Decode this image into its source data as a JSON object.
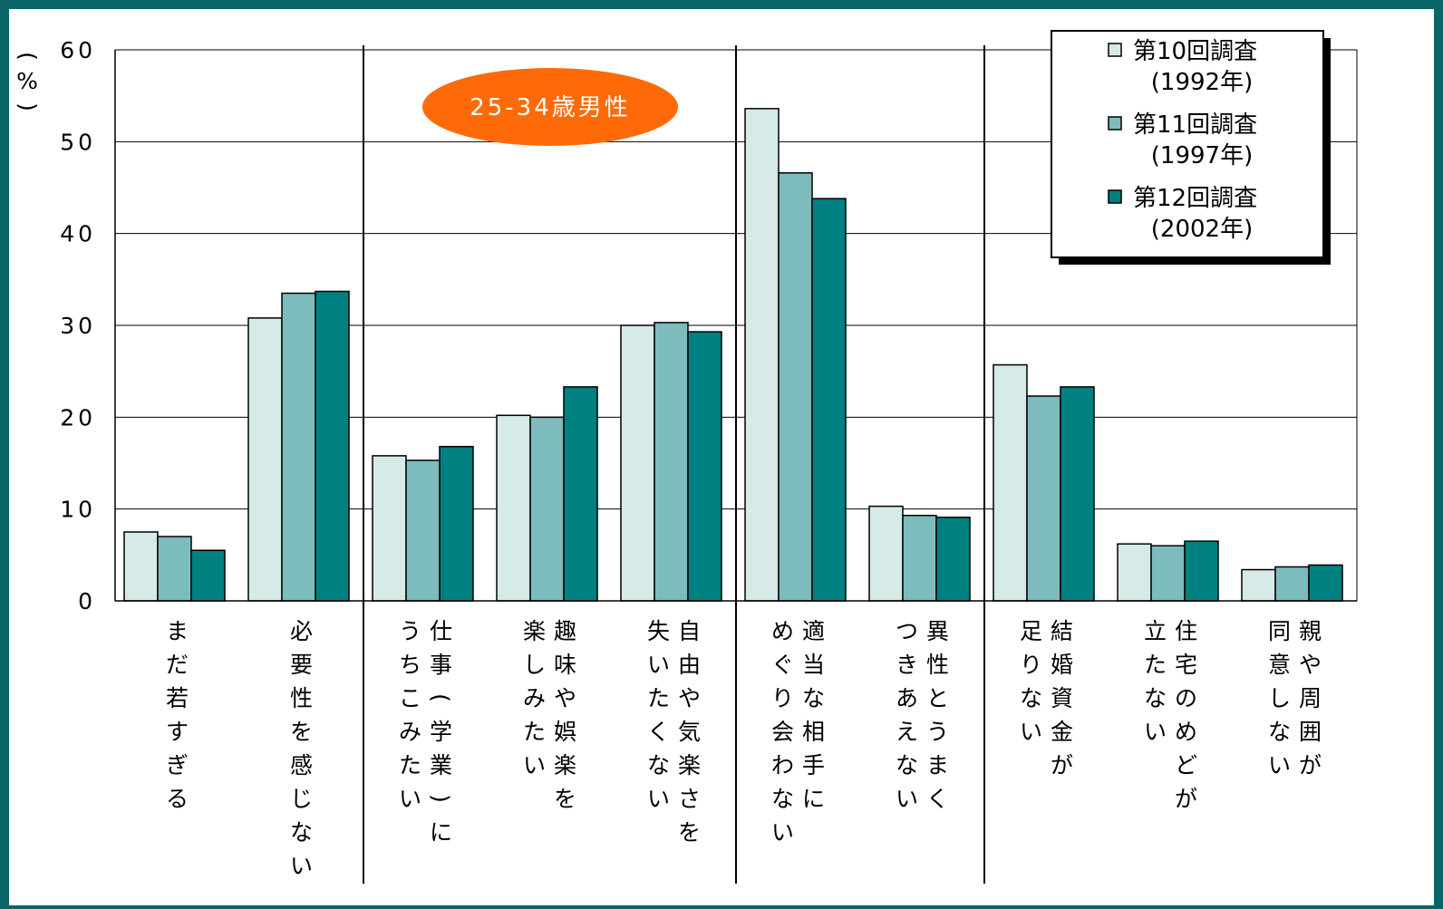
{
  "colors": {
    "background": "#0a6468",
    "panel": "#ffffff",
    "badge": "#ff6a08",
    "series": [
      "#d6eae8",
      "#7dbcbc",
      "#008080"
    ]
  },
  "badge_label": "25-34歳男性",
  "chart_data": {
    "type": "bar",
    "ylabel": "(%)",
    "ylim": [
      0,
      60
    ],
    "yticks": [
      "0",
      "10",
      "20",
      "30",
      "40",
      "50",
      "60"
    ],
    "grid": true,
    "legend_position": "top-right",
    "categories": [
      [
        "まだ若すぎる"
      ],
      [
        "必要性を感じない"
      ],
      [
        "仕事(学業)に",
        "うちこみたい"
      ],
      [
        "趣味や娯楽を",
        "楽しみたい"
      ],
      [
        "自由や気楽さを",
        "失いたくない"
      ],
      [
        "適当な相手に",
        "めぐり会わない"
      ],
      [
        "異性とうまく",
        "つきあえない"
      ],
      [
        "結婚資金が",
        "足りない"
      ],
      [
        "住宅のめどが",
        "立たない"
      ],
      [
        "親や周囲が",
        "同意しない"
      ]
    ],
    "group_separators_after": [
      2,
      5,
      7
    ],
    "series": [
      {
        "name": "第10回調査",
        "sub": "(1992年)",
        "values": [
          7.5,
          30.8,
          15.8,
          20.2,
          30.0,
          53.6,
          10.3,
          25.7,
          6.2,
          3.4
        ]
      },
      {
        "name": "第11回調査",
        "sub": "(1997年)",
        "values": [
          7.0,
          33.5,
          15.3,
          20.0,
          30.3,
          46.6,
          9.3,
          22.3,
          6.0,
          3.7
        ]
      },
      {
        "name": "第12回調査",
        "sub": "(2002年)",
        "values": [
          5.5,
          33.7,
          16.8,
          23.3,
          29.3,
          43.8,
          9.1,
          23.3,
          6.5,
          3.9
        ]
      }
    ]
  }
}
